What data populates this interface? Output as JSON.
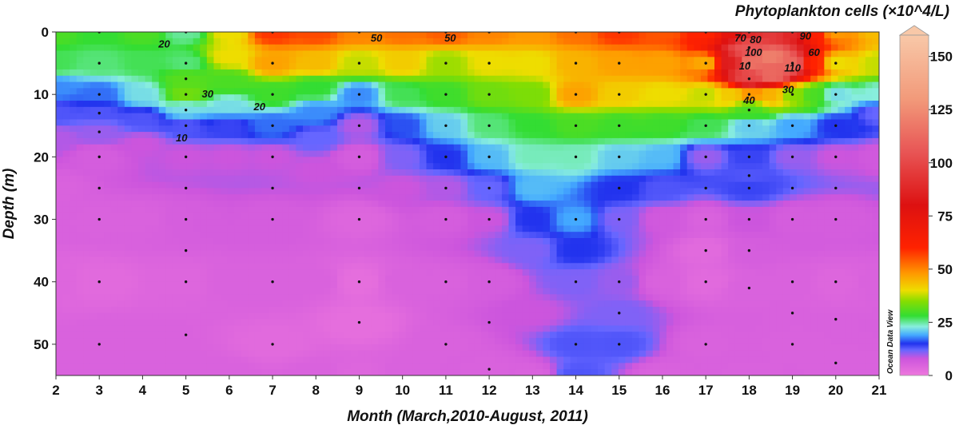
{
  "chart_data": {
    "type": "heatmap",
    "title": "Phytoplankton cells (×10^4/L)",
    "xlabel": "Month (March,2010-August, 2011)",
    "ylabel": "Depth (m)",
    "xlim": [
      2,
      21
    ],
    "ylim": [
      0,
      55
    ],
    "y_inverted": true,
    "x_ticks": [
      "2",
      "3",
      "4",
      "5",
      "6",
      "7",
      "8",
      "9",
      "10",
      "11",
      "12",
      "13",
      "14",
      "15",
      "16",
      "17",
      "18",
      "19",
      "20",
      "21"
    ],
    "y_ticks": [
      "0",
      "10",
      "20",
      "30",
      "40",
      "50"
    ],
    "colorbar": {
      "range": [
        0,
        160
      ],
      "ticks": [
        "0",
        "25",
        "50",
        "75",
        "100",
        "125",
        "150"
      ],
      "side_label": "Ocean Data View",
      "stops": [
        {
          "v": 0,
          "color": "#ee77dd"
        },
        {
          "v": 8,
          "color": "#cc55dd"
        },
        {
          "v": 12,
          "color": "#6666ff"
        },
        {
          "v": 15,
          "color": "#2233ee"
        },
        {
          "v": 19,
          "color": "#44aaff"
        },
        {
          "v": 23,
          "color": "#88eedd"
        },
        {
          "v": 28,
          "color": "#33dd33"
        },
        {
          "v": 35,
          "color": "#88dd00"
        },
        {
          "v": 40,
          "color": "#eedd00"
        },
        {
          "v": 48,
          "color": "#ff9900"
        },
        {
          "v": 60,
          "color": "#ff2200"
        },
        {
          "v": 80,
          "color": "#dd1111"
        },
        {
          "v": 105,
          "color": "#e85555"
        },
        {
          "v": 130,
          "color": "#f29a7a"
        },
        {
          "v": 160,
          "color": "#f8c8a8"
        }
      ]
    },
    "sample_points": [
      {
        "x": 3,
        "depths": [
          0,
          5,
          10,
          13,
          16,
          20,
          25,
          30,
          40,
          50
        ]
      },
      {
        "x": 5,
        "depths": [
          0,
          5,
          7.5,
          10,
          12.5,
          15,
          20,
          25,
          30,
          35,
          40,
          48.5
        ]
      },
      {
        "x": 7,
        "depths": [
          0,
          5,
          10,
          15,
          20,
          25,
          30,
          40,
          50
        ]
      },
      {
        "x": 9,
        "depths": [
          0,
          5,
          10,
          15,
          20,
          25,
          30,
          40,
          46.5
        ]
      },
      {
        "x": 11,
        "depths": [
          0,
          5,
          10,
          15,
          20,
          25,
          30,
          40,
          50
        ]
      },
      {
        "x": 12,
        "depths": [
          0,
          5,
          10,
          15,
          20,
          25,
          30,
          40,
          46.5,
          54
        ]
      },
      {
        "x": 14,
        "depths": [
          0,
          5,
          10,
          15,
          20,
          30,
          40,
          50
        ]
      },
      {
        "x": 15,
        "depths": [
          0,
          5,
          10,
          15,
          20,
          25,
          30,
          40,
          45,
          50
        ]
      },
      {
        "x": 17,
        "depths": [
          0,
          5,
          10,
          15,
          20,
          25,
          30,
          35,
          40,
          50
        ]
      },
      {
        "x": 18,
        "depths": [
          0,
          2.5,
          5,
          7.5,
          10,
          12.5,
          15,
          20,
          23,
          25,
          30,
          35,
          41
        ]
      },
      {
        "x": 19,
        "depths": [
          0,
          5,
          10,
          15,
          20,
          25,
          30,
          40,
          45,
          50
        ]
      },
      {
        "x": 20,
        "depths": [
          0,
          5,
          10,
          15,
          20,
          25,
          30,
          40,
          46,
          53
        ]
      }
    ],
    "field_anchors": [
      {
        "x": 2.0,
        "d": 0,
        "v": 30
      },
      {
        "x": 2.0,
        "d": 5,
        "v": 27
      },
      {
        "x": 2.0,
        "d": 9,
        "v": 18
      },
      {
        "x": 2.0,
        "d": 13,
        "v": 13
      },
      {
        "x": 2.0,
        "d": 17,
        "v": 9
      },
      {
        "x": 2.0,
        "d": 25,
        "v": 5
      },
      {
        "x": 2.0,
        "d": 40,
        "v": 4
      },
      {
        "x": 2.0,
        "d": 55,
        "v": 5
      },
      {
        "x": 3.0,
        "d": 0,
        "v": 28
      },
      {
        "x": 3.0,
        "d": 5,
        "v": 26
      },
      {
        "x": 3.0,
        "d": 10,
        "v": 17
      },
      {
        "x": 3.0,
        "d": 13,
        "v": 13
      },
      {
        "x": 3.0,
        "d": 16,
        "v": 10
      },
      {
        "x": 3.0,
        "d": 20,
        "v": 6
      },
      {
        "x": 3.0,
        "d": 30,
        "v": 5
      },
      {
        "x": 3.0,
        "d": 40,
        "v": 3
      },
      {
        "x": 3.0,
        "d": 50,
        "v": 5
      },
      {
        "x": 4.0,
        "d": 0,
        "v": 30
      },
      {
        "x": 4.0,
        "d": 5,
        "v": 27
      },
      {
        "x": 4.0,
        "d": 10,
        "v": 22
      },
      {
        "x": 4.0,
        "d": 14,
        "v": 13
      },
      {
        "x": 4.0,
        "d": 18,
        "v": 8
      },
      {
        "x": 4.0,
        "d": 30,
        "v": 5
      },
      {
        "x": 4.0,
        "d": 50,
        "v": 5
      },
      {
        "x": 5.0,
        "d": 0,
        "v": 25
      },
      {
        "x": 5.0,
        "d": 5,
        "v": 26
      },
      {
        "x": 5.0,
        "d": 7.5,
        "v": 31
      },
      {
        "x": 5.0,
        "d": 10,
        "v": 33
      },
      {
        "x": 5.0,
        "d": 12.5,
        "v": 22
      },
      {
        "x": 5.0,
        "d": 15,
        "v": 13
      },
      {
        "x": 5.0,
        "d": 20,
        "v": 8
      },
      {
        "x": 5.0,
        "d": 30,
        "v": 6
      },
      {
        "x": 5.0,
        "d": 40,
        "v": 4
      },
      {
        "x": 5.0,
        "d": 55,
        "v": 5
      },
      {
        "x": 6.0,
        "d": 0,
        "v": 40
      },
      {
        "x": 6.0,
        "d": 4,
        "v": 40
      },
      {
        "x": 6.0,
        "d": 8,
        "v": 30
      },
      {
        "x": 6.0,
        "d": 12,
        "v": 22
      },
      {
        "x": 6.0,
        "d": 15,
        "v": 14
      },
      {
        "x": 6.0,
        "d": 20,
        "v": 8
      },
      {
        "x": 6.0,
        "d": 40,
        "v": 5
      },
      {
        "x": 6.0,
        "d": 55,
        "v": 5
      },
      {
        "x": 7.0,
        "d": 0,
        "v": 58
      },
      {
        "x": 7.0,
        "d": 5,
        "v": 47
      },
      {
        "x": 7.0,
        "d": 10,
        "v": 29
      },
      {
        "x": 7.0,
        "d": 15,
        "v": 17
      },
      {
        "x": 7.0,
        "d": 20,
        "v": 8
      },
      {
        "x": 7.0,
        "d": 30,
        "v": 6
      },
      {
        "x": 7.0,
        "d": 40,
        "v": 5
      },
      {
        "x": 7.0,
        "d": 50,
        "v": 3
      },
      {
        "x": 8.0,
        "d": 0,
        "v": 56
      },
      {
        "x": 8.0,
        "d": 5,
        "v": 44
      },
      {
        "x": 8.0,
        "d": 9,
        "v": 28
      },
      {
        "x": 8.0,
        "d": 13,
        "v": 18
      },
      {
        "x": 8.0,
        "d": 17,
        "v": 12
      },
      {
        "x": 8.0,
        "d": 22,
        "v": 8
      },
      {
        "x": 8.0,
        "d": 40,
        "v": 5
      },
      {
        "x": 8.0,
        "d": 55,
        "v": 5
      },
      {
        "x": 9.0,
        "d": 0,
        "v": 50
      },
      {
        "x": 9.0,
        "d": 5,
        "v": 38
      },
      {
        "x": 9.0,
        "d": 10,
        "v": 18
      },
      {
        "x": 9.0,
        "d": 15,
        "v": 9
      },
      {
        "x": 9.0,
        "d": 20,
        "v": 6
      },
      {
        "x": 9.0,
        "d": 30,
        "v": 4
      },
      {
        "x": 9.0,
        "d": 40,
        "v": 2
      },
      {
        "x": 9.0,
        "d": 46.5,
        "v": 2
      },
      {
        "x": 9.0,
        "d": 55,
        "v": 4
      },
      {
        "x": 10.0,
        "d": 0,
        "v": 52
      },
      {
        "x": 10.0,
        "d": 5,
        "v": 42
      },
      {
        "x": 10.0,
        "d": 10,
        "v": 27
      },
      {
        "x": 10.0,
        "d": 15,
        "v": 16
      },
      {
        "x": 10.0,
        "d": 20,
        "v": 11
      },
      {
        "x": 10.0,
        "d": 25,
        "v": 8
      },
      {
        "x": 10.0,
        "d": 40,
        "v": 5
      },
      {
        "x": 10.0,
        "d": 55,
        "v": 5
      },
      {
        "x": 11.0,
        "d": 0,
        "v": 54
      },
      {
        "x": 11.0,
        "d": 5,
        "v": 36
      },
      {
        "x": 11.0,
        "d": 10,
        "v": 29
      },
      {
        "x": 11.0,
        "d": 15,
        "v": 21
      },
      {
        "x": 11.0,
        "d": 20,
        "v": 15
      },
      {
        "x": 11.0,
        "d": 25,
        "v": 9
      },
      {
        "x": 11.0,
        "d": 30,
        "v": 6
      },
      {
        "x": 11.0,
        "d": 40,
        "v": 5
      },
      {
        "x": 11.0,
        "d": 50,
        "v": 5
      },
      {
        "x": 12.0,
        "d": 0,
        "v": 50
      },
      {
        "x": 12.0,
        "d": 5,
        "v": 40
      },
      {
        "x": 12.0,
        "d": 10,
        "v": 33
      },
      {
        "x": 12.0,
        "d": 15,
        "v": 26
      },
      {
        "x": 12.0,
        "d": 20,
        "v": 20
      },
      {
        "x": 12.0,
        "d": 25,
        "v": 12
      },
      {
        "x": 12.0,
        "d": 30,
        "v": 8
      },
      {
        "x": 12.0,
        "d": 40,
        "v": 6
      },
      {
        "x": 12.0,
        "d": 54,
        "v": 5
      },
      {
        "x": 13.0,
        "d": 0,
        "v": 48
      },
      {
        "x": 13.0,
        "d": 5,
        "v": 40
      },
      {
        "x": 13.0,
        "d": 10,
        "v": 34
      },
      {
        "x": 13.0,
        "d": 15,
        "v": 28
      },
      {
        "x": 13.0,
        "d": 20,
        "v": 24
      },
      {
        "x": 13.0,
        "d": 25,
        "v": 20
      },
      {
        "x": 13.0,
        "d": 30,
        "v": 15
      },
      {
        "x": 13.0,
        "d": 35,
        "v": 11
      },
      {
        "x": 13.0,
        "d": 45,
        "v": 8
      },
      {
        "x": 13.0,
        "d": 55,
        "v": 5
      },
      {
        "x": 14.0,
        "d": 0,
        "v": 52
      },
      {
        "x": 14.0,
        "d": 5,
        "v": 45
      },
      {
        "x": 14.0,
        "d": 10,
        "v": 47
      },
      {
        "x": 14.0,
        "d": 15,
        "v": 30
      },
      {
        "x": 14.0,
        "d": 20,
        "v": 24
      },
      {
        "x": 14.0,
        "d": 30,
        "v": 19
      },
      {
        "x": 14.0,
        "d": 35,
        "v": 15
      },
      {
        "x": 14.0,
        "d": 40,
        "v": 11
      },
      {
        "x": 14.0,
        "d": 50,
        "v": 13
      },
      {
        "x": 14.0,
        "d": 55,
        "v": 13
      },
      {
        "x": 15.0,
        "d": 0,
        "v": 58
      },
      {
        "x": 15.0,
        "d": 5,
        "v": 47
      },
      {
        "x": 15.0,
        "d": 10,
        "v": 42
      },
      {
        "x": 15.0,
        "d": 15,
        "v": 29
      },
      {
        "x": 15.0,
        "d": 20,
        "v": 21
      },
      {
        "x": 15.0,
        "d": 25,
        "v": 15
      },
      {
        "x": 15.0,
        "d": 30,
        "v": 11
      },
      {
        "x": 15.0,
        "d": 40,
        "v": 10
      },
      {
        "x": 15.0,
        "d": 45,
        "v": 11
      },
      {
        "x": 15.0,
        "d": 50,
        "v": 13
      },
      {
        "x": 16.0,
        "d": 0,
        "v": 55
      },
      {
        "x": 16.0,
        "d": 5,
        "v": 47
      },
      {
        "x": 16.0,
        "d": 10,
        "v": 40
      },
      {
        "x": 16.0,
        "d": 15,
        "v": 29
      },
      {
        "x": 16.0,
        "d": 20,
        "v": 20
      },
      {
        "x": 16.0,
        "d": 25,
        "v": 13
      },
      {
        "x": 16.0,
        "d": 30,
        "v": 7
      },
      {
        "x": 16.0,
        "d": 40,
        "v": 5
      },
      {
        "x": 16.0,
        "d": 55,
        "v": 5
      },
      {
        "x": 17.0,
        "d": 0,
        "v": 60
      },
      {
        "x": 17.0,
        "d": 5,
        "v": 46
      },
      {
        "x": 17.0,
        "d": 10,
        "v": 38
      },
      {
        "x": 17.0,
        "d": 15,
        "v": 27
      },
      {
        "x": 17.0,
        "d": 20,
        "v": 10
      },
      {
        "x": 17.0,
        "d": 30,
        "v": 5
      },
      {
        "x": 17.0,
        "d": 35,
        "v": 3
      },
      {
        "x": 17.0,
        "d": 40,
        "v": 3
      },
      {
        "x": 17.0,
        "d": 50,
        "v": 5
      },
      {
        "x": 17.6,
        "d": 0,
        "v": 75
      },
      {
        "x": 17.6,
        "d": 5,
        "v": 85
      },
      {
        "x": 17.6,
        "d": 10,
        "v": 42
      },
      {
        "x": 18.0,
        "d": 0,
        "v": 90
      },
      {
        "x": 18.0,
        "d": 2.5,
        "v": 105
      },
      {
        "x": 18.0,
        "d": 5,
        "v": 115
      },
      {
        "x": 18.0,
        "d": 7.5,
        "v": 100
      },
      {
        "x": 18.0,
        "d": 10,
        "v": 48
      },
      {
        "x": 18.0,
        "d": 12.5,
        "v": 30
      },
      {
        "x": 18.0,
        "d": 15,
        "v": 21
      },
      {
        "x": 18.0,
        "d": 20,
        "v": 14
      },
      {
        "x": 18.0,
        "d": 23,
        "v": 13
      },
      {
        "x": 18.0,
        "d": 25,
        "v": 14
      },
      {
        "x": 18.0,
        "d": 30,
        "v": 8
      },
      {
        "x": 18.0,
        "d": 35,
        "v": 6
      },
      {
        "x": 18.0,
        "d": 41,
        "v": 5
      },
      {
        "x": 18.0,
        "d": 55,
        "v": 5
      },
      {
        "x": 18.5,
        "d": 0,
        "v": 95
      },
      {
        "x": 18.5,
        "d": 4,
        "v": 120
      },
      {
        "x": 18.5,
        "d": 7,
        "v": 112
      },
      {
        "x": 18.5,
        "d": 10,
        "v": 45
      },
      {
        "x": 19.0,
        "d": 0,
        "v": 88
      },
      {
        "x": 19.0,
        "d": 5,
        "v": 112
      },
      {
        "x": 19.0,
        "d": 10,
        "v": 35
      },
      {
        "x": 19.0,
        "d": 15,
        "v": 19
      },
      {
        "x": 19.0,
        "d": 20,
        "v": 10
      },
      {
        "x": 19.0,
        "d": 30,
        "v": 6
      },
      {
        "x": 19.0,
        "d": 40,
        "v": 5
      },
      {
        "x": 19.0,
        "d": 50,
        "v": 5
      },
      {
        "x": 19.5,
        "d": 0,
        "v": 62
      },
      {
        "x": 19.5,
        "d": 5,
        "v": 60
      },
      {
        "x": 19.5,
        "d": 10,
        "v": 30
      },
      {
        "x": 20.0,
        "d": 0,
        "v": 48
      },
      {
        "x": 20.0,
        "d": 5,
        "v": 40
      },
      {
        "x": 20.0,
        "d": 10,
        "v": 22
      },
      {
        "x": 20.0,
        "d": 15,
        "v": 15
      },
      {
        "x": 20.0,
        "d": 20,
        "v": 8
      },
      {
        "x": 20.0,
        "d": 30,
        "v": 6
      },
      {
        "x": 20.0,
        "d": 40,
        "v": 4
      },
      {
        "x": 20.0,
        "d": 53,
        "v": 5
      },
      {
        "x": 21.0,
        "d": 0,
        "v": 44
      },
      {
        "x": 21.0,
        "d": 5,
        "v": 38
      },
      {
        "x": 21.0,
        "d": 10,
        "v": 23
      },
      {
        "x": 21.0,
        "d": 13,
        "v": 12
      },
      {
        "x": 21.0,
        "d": 20,
        "v": 7
      },
      {
        "x": 21.0,
        "d": 40,
        "v": 5
      },
      {
        "x": 21.0,
        "d": 55,
        "v": 5
      }
    ],
    "contour_labels": [
      {
        "text": "20",
        "x": 4.5,
        "d": 2
      },
      {
        "text": "30",
        "x": 5.5,
        "d": 10
      },
      {
        "text": "20",
        "x": 6.7,
        "d": 12
      },
      {
        "text": "10",
        "x": 4.9,
        "d": 17
      },
      {
        "text": "50",
        "x": 9.4,
        "d": 1
      },
      {
        "text": "50",
        "x": 11.1,
        "d": 1
      },
      {
        "text": "70",
        "x": 17.8,
        "d": 1
      },
      {
        "text": "80",
        "x": 18.15,
        "d": 1.3
      },
      {
        "text": "90",
        "x": 19.3,
        "d": 0.7
      },
      {
        "text": "100",
        "x": 18.1,
        "d": 3.3
      },
      {
        "text": "10",
        "x": 17.9,
        "d": 5.5
      },
      {
        "text": "60",
        "x": 19.5,
        "d": 3.3
      },
      {
        "text": "110",
        "x": 19.0,
        "d": 5.8
      },
      {
        "text": "30",
        "x": 18.9,
        "d": 9.3
      },
      {
        "text": "40",
        "x": 18.0,
        "d": 11
      }
    ]
  }
}
